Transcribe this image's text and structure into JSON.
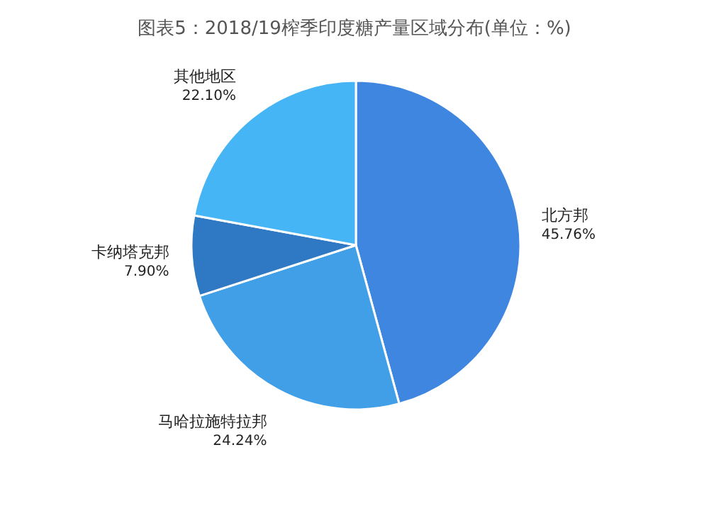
{
  "chart_data": {
    "type": "pie",
    "title": "图表5：2018/19榨季印度糖产量区域分布(单位：%)",
    "categories": [
      "北方邦",
      "马哈拉施特拉邦",
      "卡纳塔克邦",
      "其他地区"
    ],
    "values": [
      45.76,
      24.24,
      7.9,
      22.1
    ],
    "value_labels": [
      "45.76%",
      "24.24%",
      "7.90%",
      "22.10%"
    ],
    "colors": [
      "#3f86e0",
      "#419fe8",
      "#2f78c4",
      "#45b5f5"
    ]
  }
}
